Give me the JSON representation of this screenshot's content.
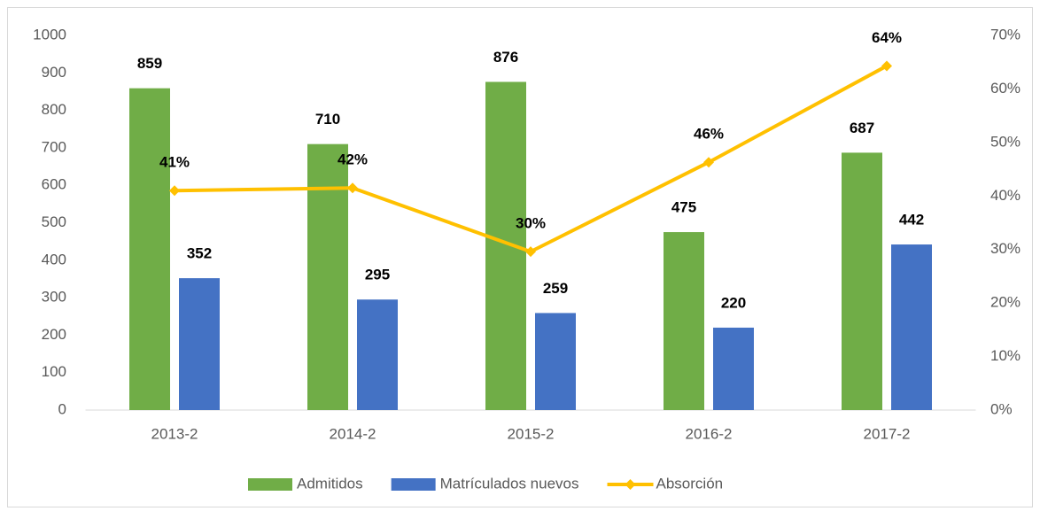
{
  "chart_data": {
    "type": "bar-line",
    "categories": [
      "2013-2",
      "2014-2",
      "2015-2",
      "2016-2",
      "2017-2"
    ],
    "series": [
      {
        "name": "Admitidos",
        "color": "#70ad47",
        "type": "bar",
        "values": [
          859,
          710,
          876,
          475,
          687
        ]
      },
      {
        "name": "Matrículados nuevos",
        "color": "#4472c4",
        "type": "bar",
        "values": [
          352,
          295,
          259,
          220,
          442
        ]
      },
      {
        "name": "Absorción",
        "color": "#ffc000",
        "type": "line",
        "axis": "y2",
        "values": [
          41.0,
          41.5,
          29.6,
          46.3,
          64.3
        ],
        "value_labels": [
          "41%",
          "42%",
          "30%",
          "46%",
          "64%"
        ]
      }
    ],
    "ylim": [
      0,
      1000
    ],
    "yticks": [
      0,
      100,
      200,
      300,
      400,
      500,
      600,
      700,
      800,
      900,
      1000
    ],
    "y2lim": [
      0,
      70
    ],
    "y2ticks": [
      {
        "value": 0,
        "label": "0%"
      },
      {
        "value": 10,
        "label": "10%"
      },
      {
        "value": 20,
        "label": "20%"
      },
      {
        "value": 30,
        "label": "30%"
      },
      {
        "value": 40,
        "label": "40%"
      },
      {
        "value": 50,
        "label": "50%"
      },
      {
        "value": 60,
        "label": "60%"
      },
      {
        "value": 70,
        "label": "70%"
      }
    ],
    "legend": "bottom",
    "grid": false
  }
}
